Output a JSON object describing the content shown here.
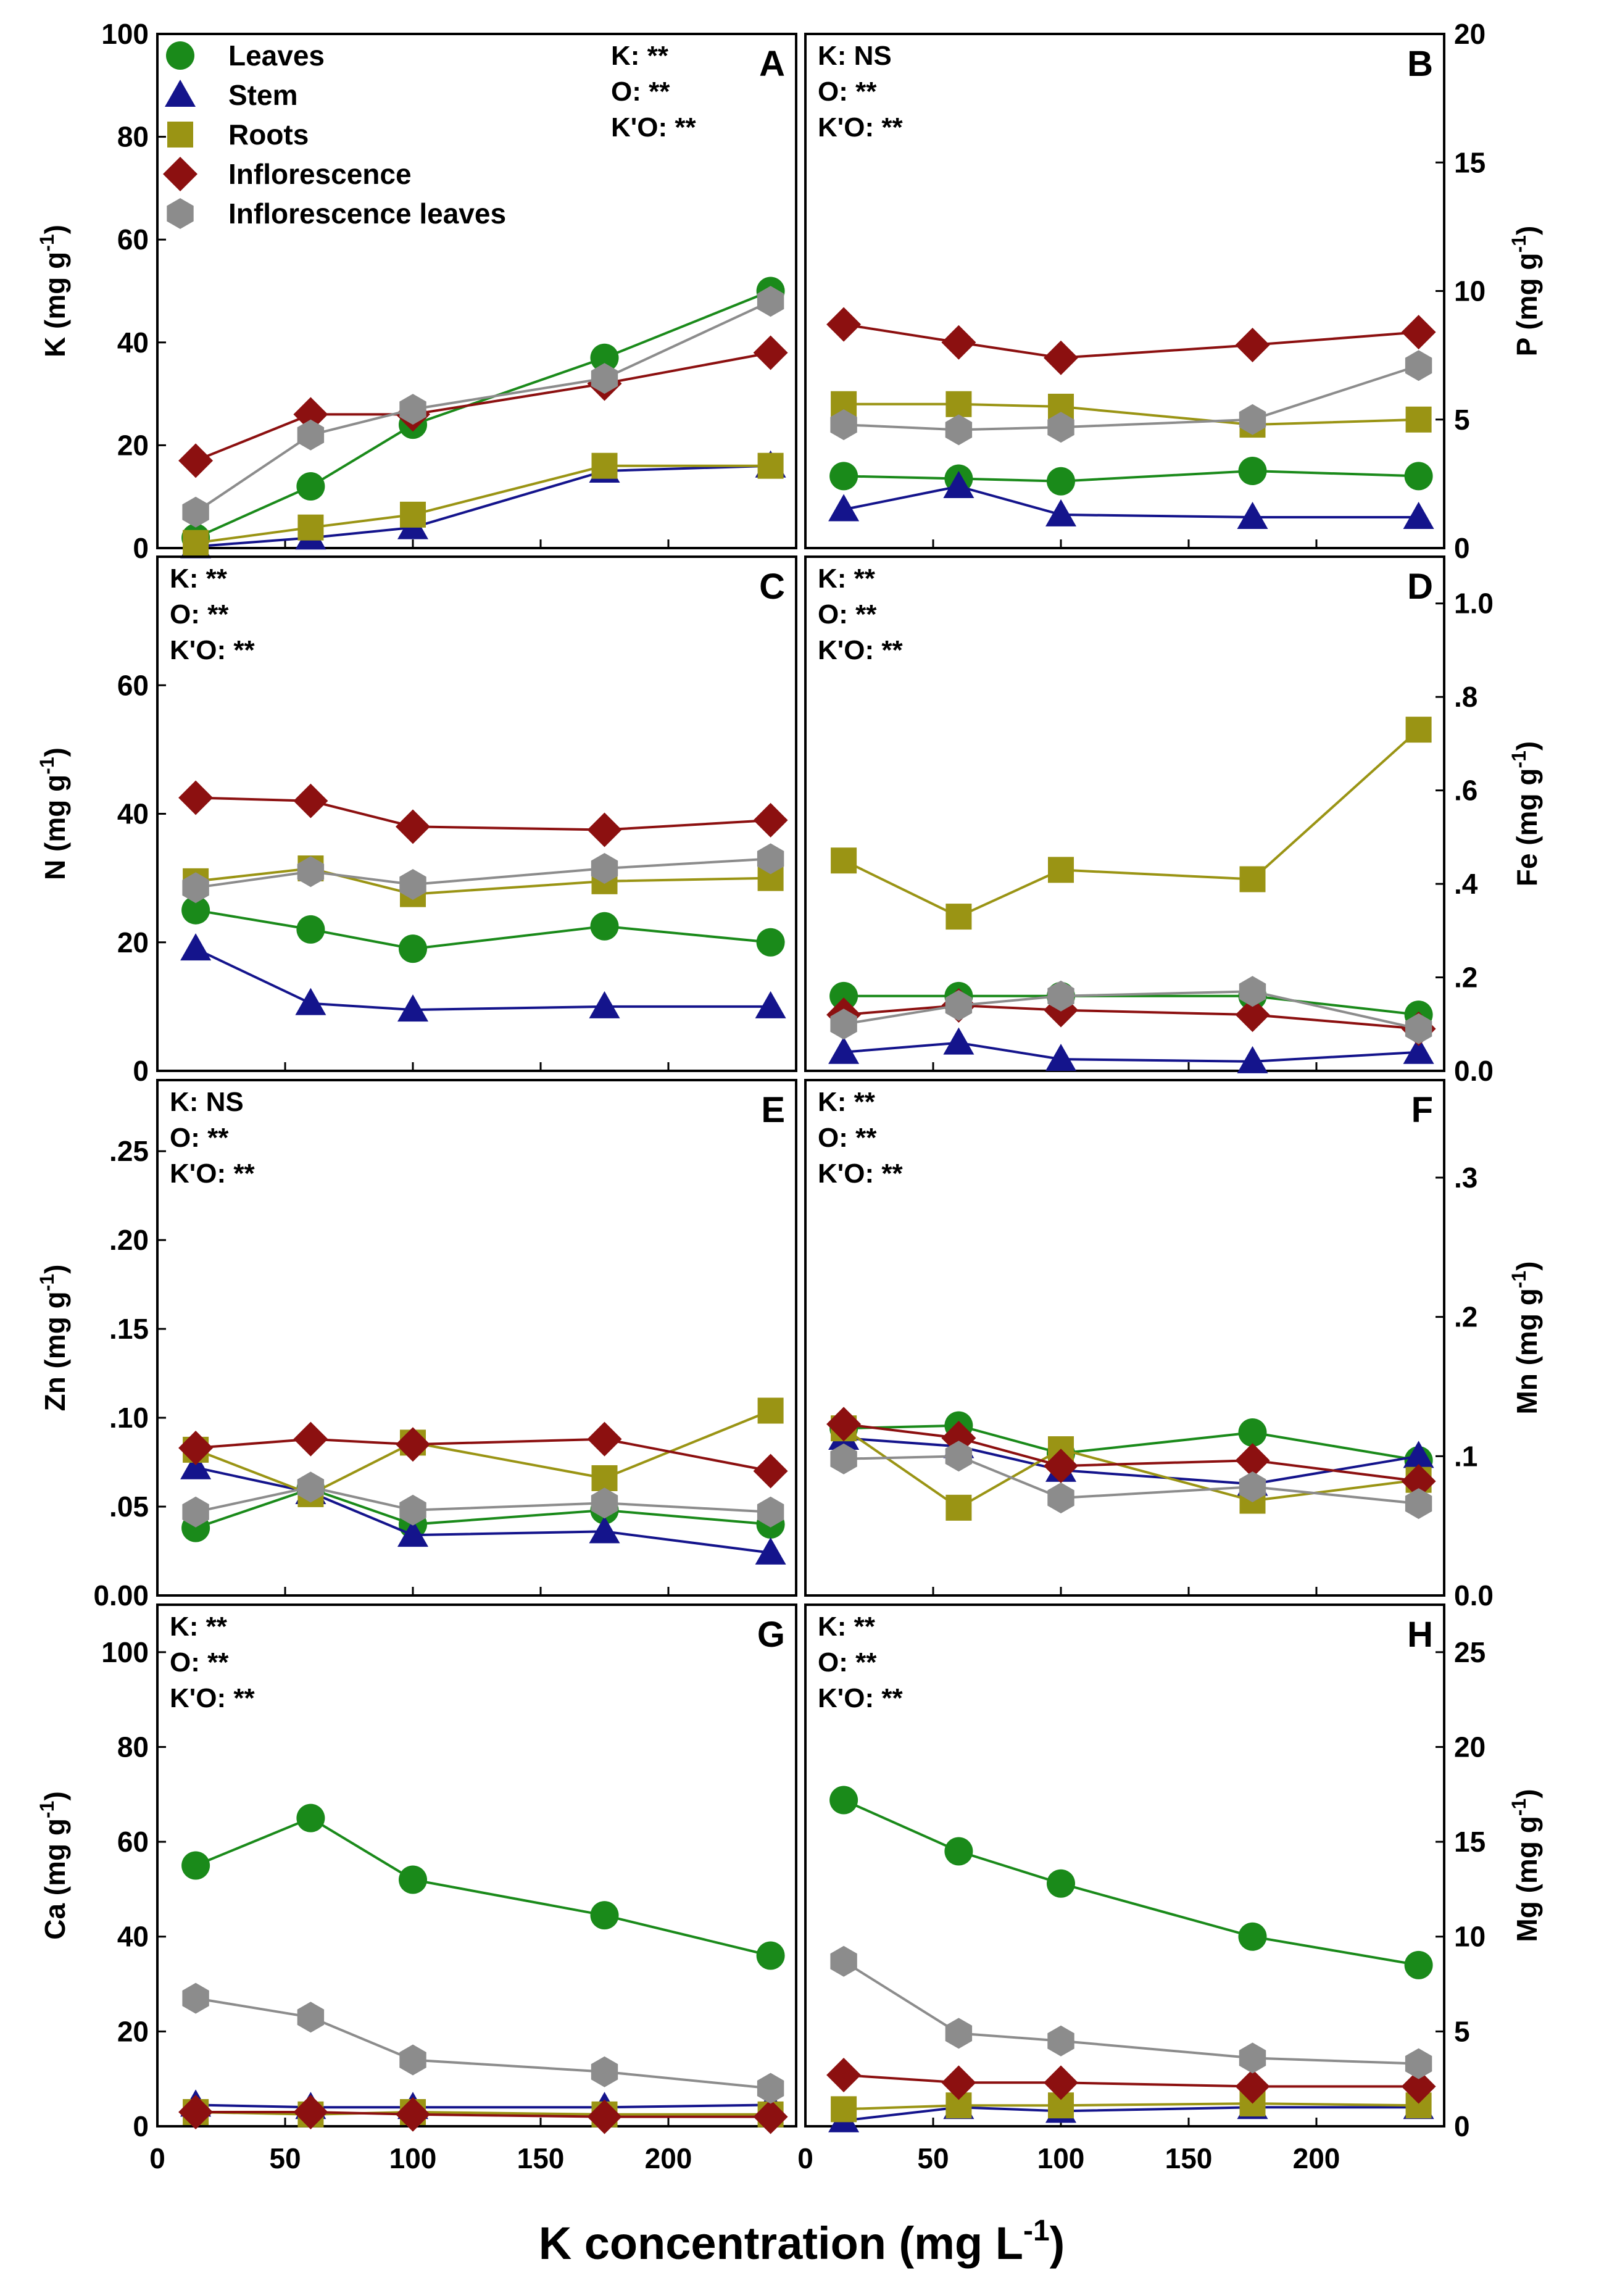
{
  "colors": {
    "leaves": "#1a8a1a",
    "stem": "#14148c",
    "roots": "#9a9414",
    "inflorescence": "#8c1010",
    "inflorescence_leaves": "#8c8c8c"
  },
  "legend": [
    {
      "key": "leaves",
      "label": "Leaves",
      "marker": "circle"
    },
    {
      "key": "stem",
      "label": "Stem",
      "marker": "triangle"
    },
    {
      "key": "roots",
      "label": "Roots",
      "marker": "square"
    },
    {
      "key": "inflorescence",
      "label": "Inflorescence",
      "marker": "diamond"
    },
    {
      "key": "inflorescence_leaves",
      "label": "Inflorescence leaves",
      "marker": "hexagon"
    }
  ],
  "x_title": "K concentration (mg L",
  "x_title_sup": "-1",
  "x_title_end": ")",
  "x_ticks": [
    0,
    50,
    100,
    150,
    200
  ],
  "x_tick_labels": [
    "0",
    "50",
    "100",
    "150",
    "200"
  ],
  "xlim": [
    0,
    250
  ],
  "chart_data": [
    {
      "type": "line",
      "panel": "A",
      "ylabel": "K (mg g",
      "ylabel_sup": "-1",
      "ylabel_end": ")",
      "ylim": [
        0,
        100
      ],
      "yticks": [
        0,
        20,
        40,
        60,
        80,
        100
      ],
      "ytick_labels": [
        "0",
        "20",
        "40",
        "60",
        "80",
        "100"
      ],
      "stats": [
        "K: **",
        "O: **",
        "K'O: **"
      ],
      "x": [
        15,
        60,
        100,
        175,
        240
      ],
      "series": [
        {
          "key": "leaves",
          "name": "Leaves",
          "values": [
            2,
            12,
            24,
            37,
            50
          ]
        },
        {
          "key": "stem",
          "name": "Stem",
          "values": [
            0.3,
            2,
            4,
            15,
            16
          ]
        },
        {
          "key": "roots",
          "name": "Roots",
          "values": [
            1,
            4,
            6.5,
            16,
            16
          ]
        },
        {
          "key": "inflorescence",
          "name": "Inflorescence",
          "values": [
            17,
            26,
            26,
            32,
            38
          ]
        },
        {
          "key": "inflorescence_leaves",
          "name": "Inflorescence leaves",
          "values": [
            7,
            22,
            27,
            33,
            48
          ]
        }
      ]
    },
    {
      "type": "line",
      "panel": "B",
      "ylabel": "P (mg g",
      "ylabel_sup": "-1",
      "ylabel_end": ")",
      "ylim": [
        0,
        20
      ],
      "yticks": [
        0,
        5,
        10,
        15,
        20
      ],
      "ytick_labels": [
        "0",
        "5",
        "10",
        "15",
        "20"
      ],
      "stats": [
        "K: NS",
        "O: **",
        "K'O: **"
      ],
      "x": [
        15,
        60,
        100,
        175,
        240
      ],
      "series": [
        {
          "key": "leaves",
          "name": "Leaves",
          "values": [
            2.8,
            2.7,
            2.6,
            3.0,
            2.8
          ]
        },
        {
          "key": "stem",
          "name": "Stem",
          "values": [
            1.5,
            2.4,
            1.3,
            1.2,
            1.2
          ]
        },
        {
          "key": "roots",
          "name": "Roots",
          "values": [
            5.6,
            5.6,
            5.5,
            4.8,
            5.0
          ]
        },
        {
          "key": "inflorescence",
          "name": "Inflorescence",
          "values": [
            8.7,
            8.0,
            7.4,
            7.9,
            8.4
          ]
        },
        {
          "key": "inflorescence_leaves",
          "name": "Inflorescence leaves",
          "values": [
            4.8,
            4.6,
            4.7,
            5.0,
            7.1
          ]
        }
      ]
    },
    {
      "type": "line",
      "panel": "C",
      "ylabel": "N (mg g",
      "ylabel_sup": "-1",
      "ylabel_end": ")",
      "ylim": [
        0,
        80
      ],
      "yticks": [
        0,
        20,
        40,
        60
      ],
      "ytick_labels": [
        "0",
        "20",
        "40",
        "60"
      ],
      "stats": [
        "K: **",
        "O: **",
        "K'O: **"
      ],
      "x": [
        15,
        60,
        100,
        175,
        240
      ],
      "series": [
        {
          "key": "leaves",
          "name": "Leaves",
          "values": [
            25,
            22,
            19,
            22.5,
            20
          ]
        },
        {
          "key": "stem",
          "name": "Stem",
          "values": [
            19,
            10.5,
            9.5,
            10,
            10
          ]
        },
        {
          "key": "roots",
          "name": "Roots",
          "values": [
            29.5,
            31.5,
            27.5,
            29.5,
            30
          ]
        },
        {
          "key": "inflorescence",
          "name": "Inflorescence",
          "values": [
            42.5,
            42,
            38,
            37.5,
            39
          ]
        },
        {
          "key": "inflorescence_leaves",
          "name": "Inflorescence leaves",
          "values": [
            28.5,
            31,
            29,
            31.5,
            33
          ]
        }
      ]
    },
    {
      "type": "line",
      "panel": "D",
      "ylabel": "Fe (mg g",
      "ylabel_sup": "-1",
      "ylabel_end": ")",
      "ylim": [
        0,
        1.1
      ],
      "yticks": [
        0,
        0.2,
        0.4,
        0.6,
        0.8,
        1.0
      ],
      "ytick_labels": [
        "0.0",
        ".2",
        ".4",
        ".6",
        ".8",
        "1.0"
      ],
      "stats": [
        "K: **",
        "O: **",
        "K'O: **"
      ],
      "x": [
        15,
        60,
        100,
        175,
        240
      ],
      "series": [
        {
          "key": "leaves",
          "name": "Leaves",
          "values": [
            0.16,
            0.16,
            0.16,
            0.16,
            0.12
          ]
        },
        {
          "key": "stem",
          "name": "Stem",
          "values": [
            0.04,
            0.06,
            0.025,
            0.02,
            0.04
          ]
        },
        {
          "key": "roots",
          "name": "Roots",
          "values": [
            0.45,
            0.33,
            0.43,
            0.41,
            0.73
          ]
        },
        {
          "key": "inflorescence",
          "name": "Inflorescence",
          "values": [
            0.12,
            0.14,
            0.13,
            0.12,
            0.09
          ]
        },
        {
          "key": "inflorescence_leaves",
          "name": "Inflorescence leaves",
          "values": [
            0.1,
            0.14,
            0.16,
            0.17,
            0.09
          ]
        }
      ]
    },
    {
      "type": "line",
      "panel": "E",
      "ylabel": "Zn (mg g",
      "ylabel_sup": "-1",
      "ylabel_end": ")",
      "ylim": [
        0,
        0.29
      ],
      "yticks": [
        0,
        0.05,
        0.1,
        0.15,
        0.2,
        0.25
      ],
      "ytick_labels": [
        "0.00",
        ".05",
        ".10",
        ".15",
        ".20",
        ".25"
      ],
      "stats": [
        "K: NS",
        "O: **",
        "K'O: **"
      ],
      "x": [
        15,
        60,
        100,
        175,
        240
      ],
      "series": [
        {
          "key": "leaves",
          "name": "Leaves",
          "values": [
            0.038,
            0.06,
            0.04,
            0.048,
            0.04
          ]
        },
        {
          "key": "stem",
          "name": "Stem",
          "values": [
            0.072,
            0.058,
            0.034,
            0.036,
            0.024
          ]
        },
        {
          "key": "roots",
          "name": "Roots",
          "values": [
            0.082,
            0.057,
            0.086,
            0.066,
            0.104
          ]
        },
        {
          "key": "inflorescence",
          "name": "Inflorescence",
          "values": [
            0.083,
            0.088,
            0.085,
            0.088,
            0.07
          ]
        },
        {
          "key": "inflorescence_leaves",
          "name": "Inflorescence leaves",
          "values": [
            0.047,
            0.061,
            0.048,
            0.052,
            0.047
          ]
        }
      ]
    },
    {
      "type": "line",
      "panel": "F",
      "ylabel": "Mn (mg g",
      "ylabel_sup": "-1",
      "ylabel_end": ")",
      "ylim": [
        0,
        0.37
      ],
      "yticks": [
        0,
        0.1,
        0.2,
        0.3
      ],
      "ytick_labels": [
        "0.0",
        ".1",
        ".2",
        ".3"
      ],
      "stats": [
        "K: **",
        "O: **",
        "K'O: **"
      ],
      "x": [
        15,
        60,
        100,
        175,
        240
      ],
      "series": [
        {
          "key": "leaves",
          "name": "Leaves",
          "values": [
            0.12,
            0.122,
            0.102,
            0.117,
            0.097
          ]
        },
        {
          "key": "stem",
          "name": "Stem",
          "values": [
            0.113,
            0.107,
            0.09,
            0.08,
            0.1
          ]
        },
        {
          "key": "roots",
          "name": "Roots",
          "values": [
            0.12,
            0.063,
            0.105,
            0.068,
            0.083
          ]
        },
        {
          "key": "inflorescence",
          "name": "Inflorescence",
          "values": [
            0.123,
            0.113,
            0.093,
            0.097,
            0.082
          ]
        },
        {
          "key": "inflorescence_leaves",
          "name": "Inflorescence leaves",
          "values": [
            0.098,
            0.1,
            0.07,
            0.078,
            0.066
          ]
        }
      ]
    },
    {
      "type": "line",
      "panel": "G",
      "ylabel": "Ca (mg g",
      "ylabel_sup": "-1",
      "ylabel_end": ")",
      "ylim": [
        0,
        110
      ],
      "yticks": [
        0,
        20,
        40,
        60,
        80,
        100
      ],
      "ytick_labels": [
        "0",
        "20",
        "40",
        "60",
        "80",
        "100"
      ],
      "stats": [
        "K: **",
        "O: **",
        "K'O: **"
      ],
      "x": [
        15,
        60,
        100,
        175,
        240
      ],
      "series": [
        {
          "key": "leaves",
          "name": "Leaves",
          "values": [
            55,
            65,
            52,
            44.5,
            36
          ]
        },
        {
          "key": "stem",
          "name": "Stem",
          "values": [
            4.5,
            4,
            4,
            4,
            4.5
          ]
        },
        {
          "key": "roots",
          "name": "Roots",
          "values": [
            3,
            2.5,
            3,
            2.5,
            2.5
          ]
        },
        {
          "key": "inflorescence",
          "name": "Inflorescence",
          "values": [
            3,
            3,
            2.5,
            2,
            2
          ]
        },
        {
          "key": "inflorescence_leaves",
          "name": "Inflorescence leaves",
          "values": [
            27,
            23,
            14,
            11.5,
            8
          ]
        }
      ]
    },
    {
      "type": "line",
      "panel": "H",
      "ylabel": "Mg (mg g",
      "ylabel_sup": "-1",
      "ylabel_end": ")",
      "ylim": [
        0,
        27.5
      ],
      "yticks": [
        0,
        5,
        10,
        15,
        20,
        25
      ],
      "ytick_labels": [
        "0",
        "5",
        "10",
        "15",
        "20",
        "25"
      ],
      "stats": [
        "K: **",
        "O: **",
        "K'O: **"
      ],
      "x": [
        15,
        60,
        100,
        175,
        240
      ],
      "series": [
        {
          "key": "leaves",
          "name": "Leaves",
          "values": [
            17.2,
            14.5,
            12.8,
            10,
            8.5
          ]
        },
        {
          "key": "stem",
          "name": "Stem",
          "values": [
            0.3,
            1,
            0.8,
            1,
            1
          ]
        },
        {
          "key": "roots",
          "name": "Roots",
          "values": [
            0.9,
            1.1,
            1.1,
            1.2,
            1.1
          ]
        },
        {
          "key": "inflorescence",
          "name": "Inflorescence",
          "values": [
            2.7,
            2.3,
            2.3,
            2.1,
            2.1
          ]
        },
        {
          "key": "inflorescence_leaves",
          "name": "Inflorescence leaves",
          "values": [
            8.7,
            4.9,
            4.5,
            3.6,
            3.3
          ]
        }
      ]
    }
  ]
}
